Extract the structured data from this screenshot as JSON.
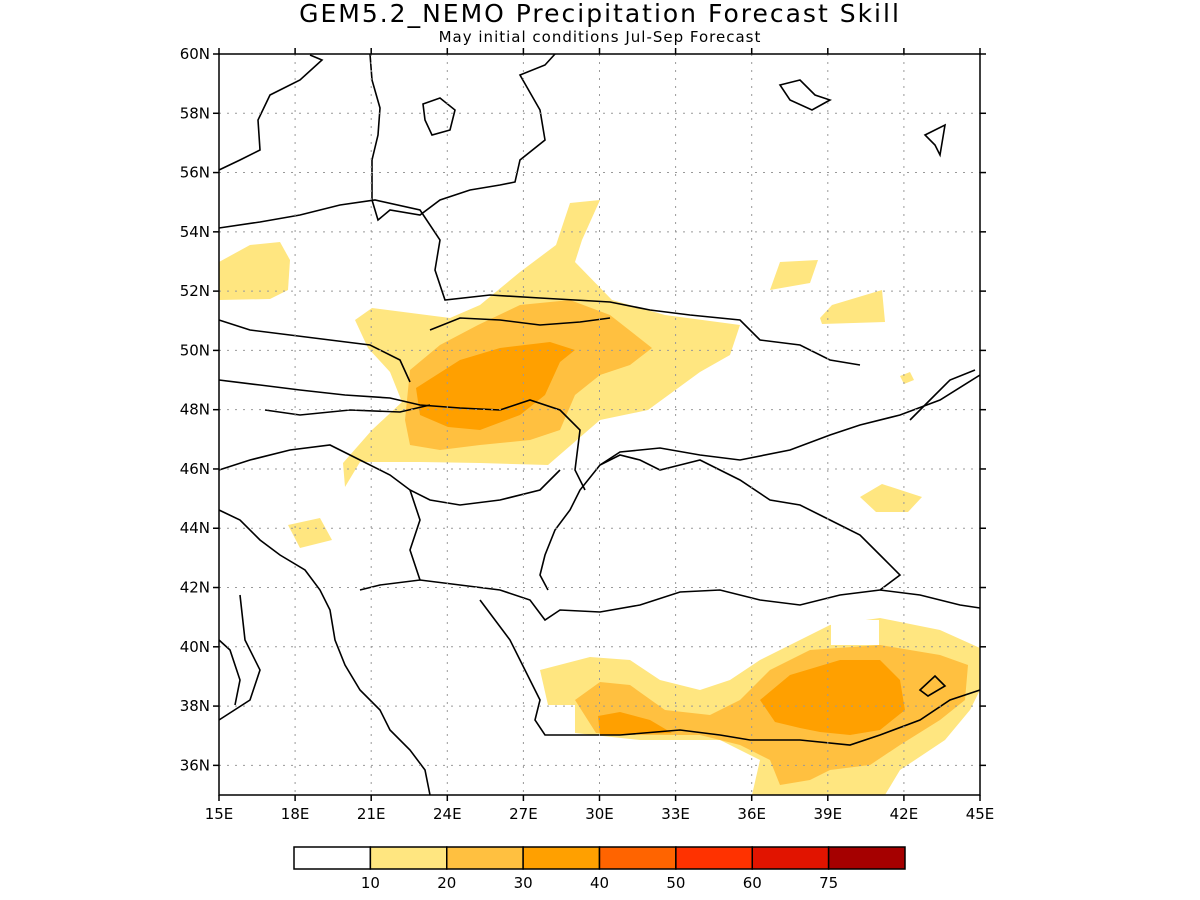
{
  "title": "GEM5.2_NEMO Precipitation Forecast Skill",
  "subtitle": "May initial conditions  Jul-Sep Forecast",
  "lat_labels": [
    "60N",
    "58N",
    "56N",
    "54N",
    "52N",
    "50N",
    "48N",
    "46N",
    "44N",
    "42N",
    "40N",
    "38N",
    "36N"
  ],
  "lon_labels": [
    "15E",
    "18E",
    "21E",
    "24E",
    "27E",
    "30E",
    "33E",
    "36E",
    "39E",
    "42E",
    "45E"
  ],
  "legend": {
    "ticks": [
      "10",
      "20",
      "30",
      "40",
      "50",
      "60",
      "75"
    ],
    "colors": [
      "#ffffff",
      "#ffe680",
      "#ffc040",
      "#ffa000",
      "#ff6400",
      "#ff3200",
      "#e11400",
      "#a50000"
    ]
  },
  "map_extent": {
    "lon": [
      15,
      45
    ],
    "lat": [
      35,
      60
    ]
  },
  "grid": true
}
